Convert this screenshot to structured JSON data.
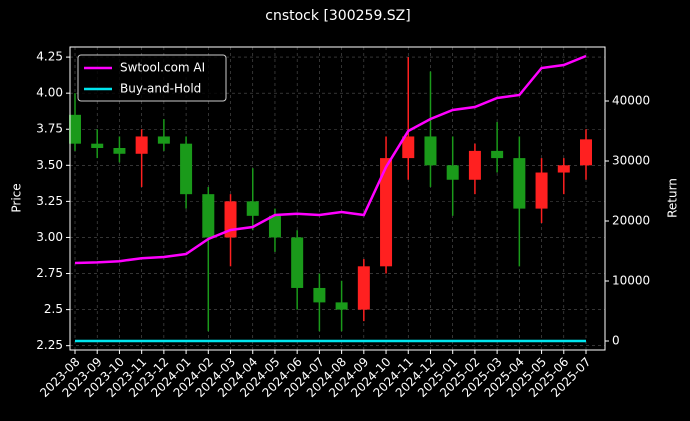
{
  "chart_data": {
    "type": "candlestick",
    "title": "cnstock [300259.SZ]",
    "ylabel": "Price",
    "y2label": "Return",
    "categories": [
      "2023-08",
      "2023-09",
      "2023-10",
      "2023-11",
      "2023-12",
      "2024-01",
      "2024-02",
      "2024-03",
      "2024-04",
      "2024-05",
      "2024-06",
      "2024-07",
      "2024-08",
      "2024-09",
      "2024-10",
      "2024-11",
      "2024-12",
      "2025-01",
      "2025-02",
      "2025-03",
      "2025-04",
      "2025-05",
      "2025-06",
      "2025-07"
    ],
    "open": [
      3.85,
      3.65,
      3.62,
      3.58,
      3.7,
      3.65,
      3.3,
      3.0,
      3.25,
      3.15,
      3.0,
      2.65,
      2.55,
      2.5,
      2.8,
      3.55,
      3.7,
      3.5,
      3.4,
      3.6,
      3.55,
      3.2,
      3.45,
      3.5
    ],
    "high": [
      4.0,
      3.75,
      3.7,
      3.75,
      3.82,
      3.7,
      3.35,
      3.3,
      3.48,
      3.2,
      3.05,
      2.75,
      2.7,
      2.85,
      3.7,
      4.25,
      4.15,
      3.7,
      3.65,
      3.8,
      3.7,
      3.55,
      3.55,
      3.75
    ],
    "low": [
      3.6,
      3.55,
      3.52,
      3.35,
      3.6,
      3.2,
      2.35,
      2.8,
      3.05,
      2.9,
      2.5,
      2.35,
      2.35,
      2.42,
      2.75,
      3.4,
      3.35,
      3.15,
      3.3,
      3.45,
      2.8,
      3.1,
      3.3,
      3.4
    ],
    "close": [
      3.65,
      3.62,
      3.58,
      3.7,
      3.65,
      3.3,
      3.0,
      3.25,
      3.15,
      3.0,
      2.65,
      2.55,
      2.5,
      2.8,
      3.55,
      3.7,
      3.5,
      3.4,
      3.6,
      3.55,
      3.2,
      3.45,
      3.5,
      3.68
    ],
    "up_color": "#ff2020",
    "down_color": "#1a9a1a",
    "series": [
      {
        "name": "Swtool.com AI",
        "color": "#ff00ff",
        "axis": "y2",
        "values": [
          13000,
          13100,
          13300,
          13800,
          14000,
          14500,
          17000,
          18500,
          19000,
          21000,
          21200,
          21000,
          21500,
          21000,
          29000,
          35000,
          37000,
          38500,
          39000,
          40500,
          41000,
          45500,
          46000,
          47500
        ]
      },
      {
        "name": "Buy-and-Hold",
        "color": "#00e5ee",
        "axis": "y2",
        "values": [
          1,
          0.95,
          0.94,
          0.96,
          0.95,
          0.86,
          0.78,
          0.84,
          0.82,
          0.78,
          0.69,
          0.66,
          0.65,
          0.73,
          0.92,
          0.96,
          0.91,
          0.88,
          0.94,
          0.92,
          0.83,
          0.9,
          0.91,
          0.96
        ]
      }
    ],
    "ylim": [
      2.22,
      4.32
    ],
    "yticks": [
      2.25,
      2.5,
      2.75,
      {
        "value": 3,
        "label": "3.00"
      },
      3.25,
      {
        "value": 3.5,
        "label": "3.50"
      },
      3.75,
      {
        "value": 4,
        "label": "4.00"
      },
      4.25
    ],
    "y2lim": [
      -1500,
      49000
    ],
    "y2ticks": [
      0,
      10000,
      20000,
      30000,
      40000
    ],
    "grid": true,
    "legend": "upper left"
  }
}
